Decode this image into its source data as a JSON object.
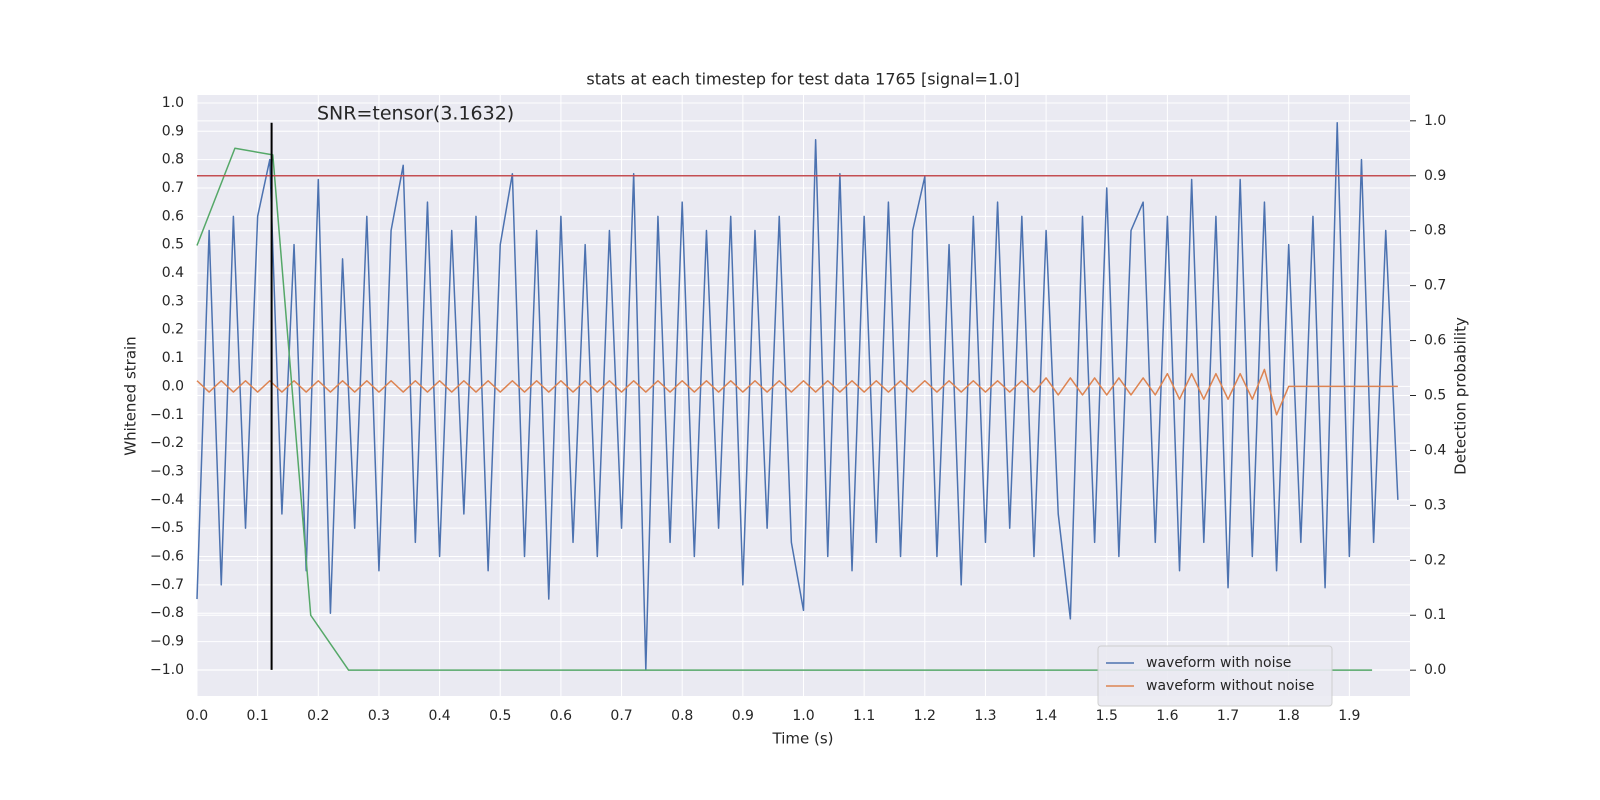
{
  "chart_data": {
    "type": "line",
    "title": "stats at each timestep for test data 1765 [signal=1.0]",
    "xlabel": "Time (s)",
    "ylabel": "Whitened strain",
    "y2label": "Detection probability",
    "annotation": "SNR=tensor(3.1632)",
    "grid": true,
    "legend": "lower right",
    "xlim": [
      0,
      2.0
    ],
    "ylim": [
      -1.092,
      1.028
    ],
    "y2lim": [
      -0.047,
      1.047
    ],
    "xticks": [
      {
        "value": 0,
        "label": "0.0"
      },
      0.1,
      0.2,
      0.3,
      0.4,
      0.5,
      0.6,
      0.7,
      0.8,
      0.9,
      {
        "value": 1,
        "label": "1.0"
      },
      1.1,
      1.2,
      1.3,
      1.4,
      1.5,
      1.6,
      1.7,
      1.8,
      1.9
    ],
    "yticks": [
      {
        "value": -1,
        "label": "−1.0"
      },
      {
        "value": -0.9,
        "label": "−0.9"
      },
      {
        "value": -0.8,
        "label": "−0.8"
      },
      {
        "value": -0.7,
        "label": "−0.7"
      },
      {
        "value": -0.6,
        "label": "−0.6"
      },
      {
        "value": -0.5,
        "label": "−0.5"
      },
      {
        "value": -0.4,
        "label": "−0.4"
      },
      {
        "value": -0.3,
        "label": "−0.3"
      },
      {
        "value": -0.2,
        "label": "−0.2"
      },
      {
        "value": -0.1,
        "label": "−0.1"
      },
      {
        "value": 0,
        "label": "0.0"
      },
      0.1,
      0.2,
      0.3,
      0.4,
      0.5,
      0.6,
      0.7,
      0.8,
      0.9,
      {
        "value": 1,
        "label": "1.0"
      }
    ],
    "y2ticks": [
      {
        "value": 0,
        "label": "0.0"
      },
      0.1,
      0.2,
      0.3,
      0.4,
      0.5,
      0.6,
      0.7,
      0.8,
      0.9,
      {
        "value": 1,
        "label": "1.0"
      }
    ],
    "x": [
      0,
      0.02,
      0.04,
      0.06,
      0.08,
      0.1,
      0.12,
      0.14,
      0.16,
      0.18,
      0.2,
      0.22,
      0.24,
      0.26,
      0.28,
      0.3,
      0.32,
      0.34,
      0.36,
      0.38,
      0.4,
      0.42,
      0.44,
      0.46,
      0.48,
      0.5,
      0.52,
      0.54,
      0.56,
      0.58,
      0.6,
      0.62,
      0.64,
      0.66,
      0.68,
      0.7,
      0.72,
      0.74,
      0.76,
      0.78,
      0.8,
      0.82,
      0.84,
      0.86,
      0.88,
      0.9,
      0.92,
      0.94,
      0.96,
      0.98,
      1.0,
      1.02,
      1.04,
      1.06,
      1.08,
      1.1,
      1.12,
      1.14,
      1.16,
      1.18,
      1.2,
      1.22,
      1.24,
      1.26,
      1.28,
      1.3,
      1.32,
      1.34,
      1.36,
      1.38,
      1.4,
      1.42,
      1.44,
      1.46,
      1.48,
      1.5,
      1.52,
      1.54,
      1.56,
      1.58,
      1.6,
      1.62,
      1.64,
      1.66,
      1.68,
      1.7,
      1.72,
      1.74,
      1.76,
      1.78,
      1.8,
      1.82,
      1.84,
      1.86,
      1.88,
      1.9,
      1.92,
      1.94,
      1.96,
      1.98
    ],
    "series": [
      {
        "name": "waveform with noise",
        "color": "#4c72b0",
        "values": [
          -0.75,
          0.55,
          -0.7,
          0.6,
          -0.5,
          0.6,
          0.8,
          -0.45,
          0.5,
          -0.65,
          0.73,
          -0.8,
          0.45,
          -0.5,
          0.6,
          -0.65,
          0.55,
          0.78,
          -0.55,
          0.65,
          -0.6,
          0.55,
          -0.45,
          0.6,
          -0.65,
          0.5,
          0.75,
          -0.6,
          0.55,
          -0.75,
          0.6,
          -0.55,
          0.5,
          -0.6,
          0.55,
          -0.5,
          0.75,
          -1.0,
          0.6,
          -0.55,
          0.65,
          -0.6,
          0.55,
          -0.5,
          0.6,
          -0.7,
          0.55,
          -0.5,
          0.6,
          -0.55,
          -0.79,
          0.87,
          -0.6,
          0.75,
          -0.65,
          0.6,
          -0.55,
          0.65,
          -0.6,
          0.55,
          0.74,
          -0.6,
          0.5,
          -0.7,
          0.6,
          -0.55,
          0.65,
          -0.5,
          0.6,
          -0.6,
          0.55,
          -0.45,
          -0.82,
          0.6,
          -0.55,
          0.7,
          -0.6,
          0.55,
          0.65,
          -0.55,
          0.6,
          -0.65,
          0.73,
          -0.55,
          0.6,
          -0.71,
          0.73,
          -0.6,
          0.65,
          -0.65,
          0.5,
          -0.55,
          0.6,
          -0.71,
          0.93,
          -0.6,
          0.8,
          -0.55,
          0.55,
          -0.4
        ]
      },
      {
        "name": "waveform without noise",
        "color": "#dd8452",
        "values": [
          0.02,
          -0.02,
          0.02,
          -0.02,
          0.02,
          -0.02,
          0.02,
          -0.02,
          0.02,
          -0.02,
          0.02,
          -0.02,
          0.02,
          -0.02,
          0.02,
          -0.02,
          0.02,
          -0.02,
          0.02,
          -0.02,
          0.02,
          -0.02,
          0.02,
          -0.02,
          0.02,
          -0.02,
          0.02,
          -0.02,
          0.02,
          -0.02,
          0.02,
          -0.02,
          0.02,
          -0.02,
          0.02,
          -0.02,
          0.02,
          -0.02,
          0.02,
          -0.02,
          0.02,
          -0.02,
          0.02,
          -0.02,
          0.02,
          -0.02,
          0.02,
          -0.02,
          0.02,
          -0.02,
          0.02,
          -0.02,
          0.02,
          -0.02,
          0.02,
          -0.02,
          0.02,
          -0.02,
          0.02,
          -0.02,
          0.02,
          -0.02,
          0.02,
          -0.02,
          0.02,
          -0.02,
          0.02,
          -0.02,
          0.02,
          -0.02,
          0.03,
          -0.03,
          0.03,
          -0.03,
          0.03,
          -0.03,
          0.03,
          -0.03,
          0.03,
          -0.03,
          0.045,
          -0.045,
          0.045,
          -0.045,
          0.045,
          -0.045,
          0.045,
          -0.045,
          0.06,
          -0.1,
          0,
          0,
          0,
          0,
          0,
          0,
          0,
          0,
          0,
          0
        ]
      },
      {
        "color": "#55a868",
        "axis": "y2",
        "x": [
          0,
          0.0625,
          0.125,
          0.1875,
          0.25,
          0.3125,
          0.375,
          0.4375,
          0.5,
          0.5625,
          0.625,
          0.6875,
          0.75,
          0.8125,
          0.875,
          0.9375,
          1.0,
          1.0625,
          1.125,
          1.1875,
          1.25,
          1.3125,
          1.375,
          1.4375,
          1.5,
          1.5625,
          1.625,
          1.6875,
          1.75,
          1.8125,
          1.875,
          1.9375
        ],
        "values": [
          0.773,
          0.95,
          0.938,
          0.1,
          0,
          0,
          0,
          0,
          0,
          0,
          0,
          0,
          0,
          0,
          0,
          0,
          0,
          0,
          0,
          0,
          0,
          0,
          0,
          0,
          0,
          0,
          0,
          0,
          0,
          0,
          0,
          0
        ]
      }
    ],
    "hline": {
      "y": 0.9,
      "axis": "y2",
      "color": "#c44e52"
    },
    "vline": {
      "x": 0.123,
      "ymin": -1.0,
      "ymax": 0.93,
      "color": "#000000"
    }
  }
}
